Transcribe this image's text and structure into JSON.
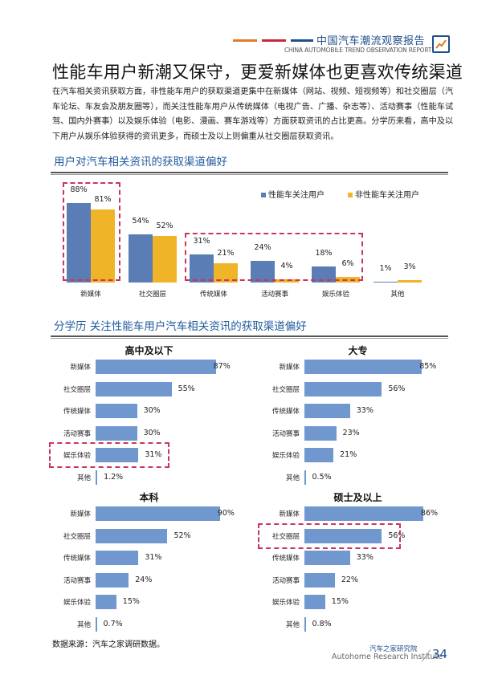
{
  "header": {
    "title": "中国汽车潮流观察报告",
    "subtitle": "CHINA AUTOMOBILE TREND OBSERVATION REPORT",
    "line_colors": [
      "#e07a2a",
      "#c8283a",
      "#1f4e8c"
    ],
    "icon": "trend-chart-icon"
  },
  "page": {
    "title": "性能车用户新潮又保守，更爱新媒体也更喜欢传统渠道",
    "intro": "在汽车相关资讯获取方面，非性能车用户的获取渠道更集中在新媒体（网站、视频、短视频等）和社交圈层（汽车论坛、车友会及朋友圈等），而关注性能车用户从传统媒体（电视广告、广播、杂志等）、活动赛事（性能车试驾、国内外赛事）以及娱乐体验（电影、漫画、赛车游戏等）方面获取资讯的占比更高。分学历来看，高中及以下用户从娱乐体验获得的资讯更多，而硕士及以上则偏重从社交圈层获取资讯。",
    "section1_title": "用户对汽车相关资讯的获取渠道偏好",
    "section2_title": "分学历  关注性能车用户汽车相关资讯的获取渠道偏好"
  },
  "colors": {
    "performance": "#5b7db5",
    "non_performance": "#f0b428",
    "edu_bar": "#7098cf",
    "highlight_dash": "#c8375a",
    "title_blue": "#1f5a9c"
  },
  "chart_data": [
    {
      "type": "bar",
      "title": "用户对汽车相关资讯的获取渠道偏好",
      "categories": [
        "新媒体",
        "社交圈层",
        "传统媒体",
        "活动赛事",
        "娱乐体验",
        "其他"
      ],
      "series": [
        {
          "name": "性能车关注用户",
          "values": [
            88,
            54,
            31,
            24,
            18,
            1
          ],
          "labels": [
            "88%",
            "54%",
            "31%",
            "24%",
            "18%",
            "1%"
          ]
        },
        {
          "name": "非性能车关注用户",
          "values": [
            81,
            52,
            21,
            4,
            6,
            3
          ],
          "labels": [
            "81%",
            "52%",
            "21%",
            "4%",
            "6%",
            "3%"
          ]
        }
      ],
      "legend_position": "top-right",
      "grid": false,
      "highlighted": [
        "新媒体",
        "传统媒体",
        "活动赛事",
        "娱乐体验"
      ]
    },
    {
      "type": "bar",
      "orientation": "horizontal",
      "title": "高中及以下",
      "categories": [
        "新媒体",
        "社交圈层",
        "传统媒体",
        "活动赛事",
        "娱乐体验",
        "其他"
      ],
      "values": [
        87,
        55,
        30,
        30,
        31,
        1.2
      ],
      "labels": [
        "87%",
        "55%",
        "30%",
        "30%",
        "31%",
        "1.2%"
      ],
      "highlighted": [
        "娱乐体验"
      ]
    },
    {
      "type": "bar",
      "orientation": "horizontal",
      "title": "大专",
      "categories": [
        "新媒体",
        "社交圈层",
        "传统媒体",
        "活动赛事",
        "娱乐体验",
        "其他"
      ],
      "values": [
        85,
        56,
        33,
        23,
        21,
        0.5
      ],
      "labels": [
        "85%",
        "56%",
        "33%",
        "23%",
        "21%",
        "0.5%"
      ],
      "highlighted": []
    },
    {
      "type": "bar",
      "orientation": "horizontal",
      "title": "本科",
      "categories": [
        "新媒体",
        "社交圈层",
        "传统媒体",
        "活动赛事",
        "娱乐体验",
        "其他"
      ],
      "values": [
        90,
        52,
        31,
        24,
        15,
        0.7
      ],
      "labels": [
        "90%",
        "52%",
        "31%",
        "24%",
        "15%",
        "0.7%"
      ],
      "highlighted": []
    },
    {
      "type": "bar",
      "orientation": "horizontal",
      "title": "硕士及以上",
      "categories": [
        "新媒体",
        "社交圈层",
        "传统媒体",
        "活动赛事",
        "娱乐体验",
        "其他"
      ],
      "values": [
        86,
        56,
        33,
        22,
        15,
        0.8
      ],
      "labels": [
        "86%",
        "56%",
        "33%",
        "22%",
        "15%",
        "0.8%"
      ],
      "highlighted": [
        "社交圈层"
      ]
    }
  ],
  "footer": {
    "source": "数据来源：汽车之家调研数据。",
    "org_cn": "汽车之家研究院",
    "org_en": "Autohome Research Institute",
    "page_number": "34"
  }
}
